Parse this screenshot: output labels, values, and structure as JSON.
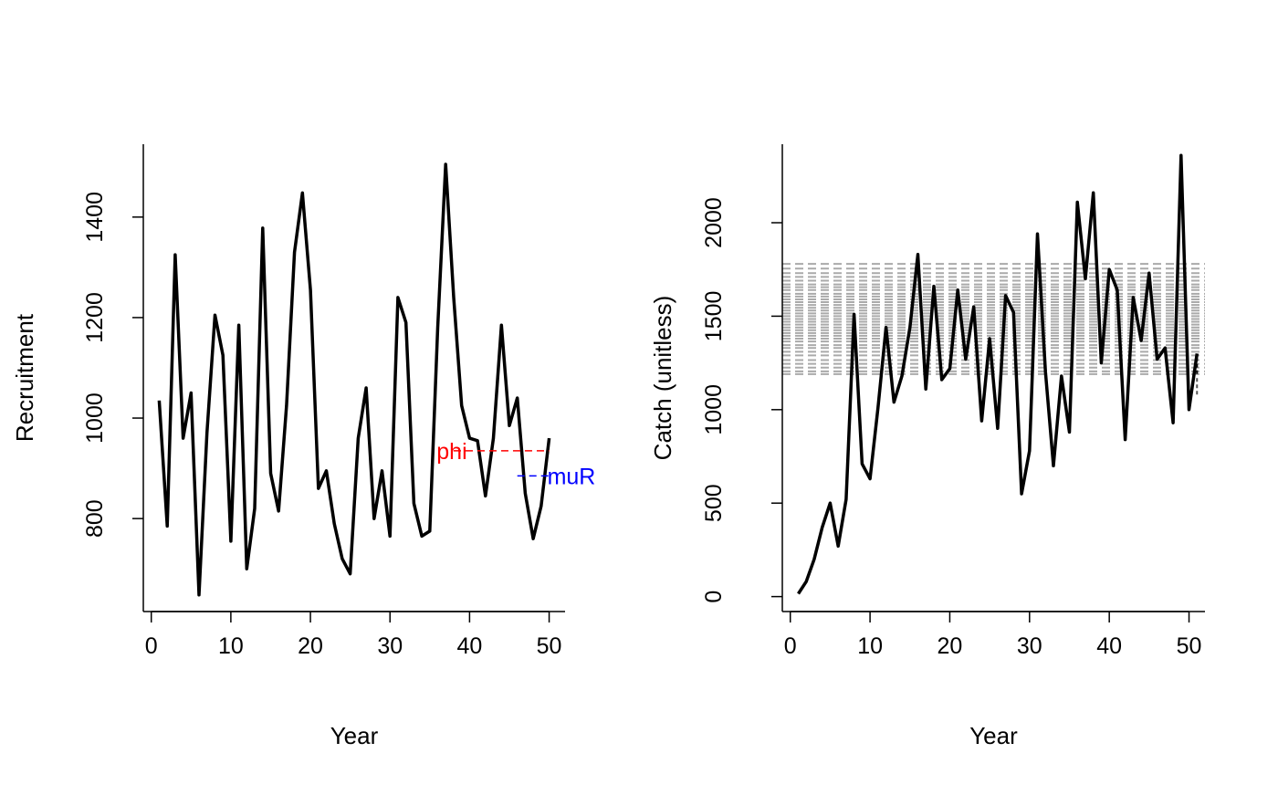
{
  "chart_data": [
    {
      "type": "line",
      "xlabel": "Year",
      "ylabel": "Recruitment",
      "xlim": [
        -1,
        52
      ],
      "ylim": [
        615,
        1545
      ],
      "xticks": [
        0,
        10,
        20,
        30,
        40,
        50
      ],
      "yticks": [
        800,
        1000,
        1200,
        1400
      ],
      "series": [
        {
          "name": "Recruitment",
          "color": "#000000",
          "x": [
            1,
            2,
            3,
            4,
            5,
            6,
            7,
            8,
            9,
            10,
            11,
            12,
            13,
            14,
            15,
            16,
            17,
            18,
            19,
            20,
            21,
            22,
            23,
            24,
            25,
            26,
            27,
            28,
            29,
            30,
            31,
            32,
            33,
            34,
            35,
            36,
            37,
            38,
            39,
            40,
            41,
            42,
            43,
            44,
            45,
            46,
            47,
            48,
            49,
            50
          ],
          "values": [
            1035,
            785,
            1325,
            960,
            1050,
            648,
            970,
            1205,
            1125,
            755,
            1185,
            700,
            820,
            1378,
            890,
            815,
            1025,
            1330,
            1448,
            1255,
            860,
            895,
            790,
            720,
            690,
            960,
            1060,
            800,
            895,
            765,
            1240,
            1190,
            830,
            765,
            775,
            1180,
            1505,
            1240,
            1025,
            960,
            955,
            845,
            960,
            1185,
            985,
            1040,
            850,
            760,
            825,
            960
          ]
        }
      ],
      "annotations": [
        {
          "label": "phi",
          "color": "#ff0000",
          "y": 935,
          "x_from": 38,
          "x_to": 50
        },
        {
          "label": "muR",
          "color": "#0000ff",
          "y": 885,
          "x_from": 46,
          "x_to": 50
        }
      ]
    },
    {
      "type": "line",
      "xlabel": "Year",
      "ylabel": "Catch (unitless)",
      "xlim": [
        -1,
        52
      ],
      "ylim": [
        -80,
        2420
      ],
      "xticks": [
        0,
        10,
        20,
        30,
        40,
        50
      ],
      "yticks": [
        0,
        500,
        1000,
        1500,
        2000
      ],
      "reference_lines": {
        "color": "#aaaaaa",
        "style": "dashed",
        "x_from": -1,
        "x_to": 52,
        "values": [
          1190,
          1205,
          1225,
          1245,
          1265,
          1290,
          1310,
          1330,
          1345,
          1365,
          1380,
          1395,
          1410,
          1425,
          1440,
          1455,
          1470,
          1485,
          1500,
          1515,
          1530,
          1545,
          1560,
          1575,
          1590,
          1605,
          1620,
          1640,
          1655,
          1670,
          1690,
          1710,
          1730,
          1755,
          1780
        ]
      },
      "series": [
        {
          "name": "Catch",
          "color": "#000000",
          "x": [
            1,
            2,
            3,
            4,
            5,
            6,
            7,
            8,
            9,
            10,
            11,
            12,
            13,
            14,
            15,
            16,
            17,
            18,
            19,
            20,
            21,
            22,
            23,
            24,
            25,
            26,
            27,
            28,
            29,
            30,
            31,
            32,
            33,
            34,
            35,
            36,
            37,
            38,
            39,
            40,
            41,
            42,
            43,
            44,
            45,
            46,
            47,
            48,
            49,
            50,
            51
          ],
          "values": [
            15,
            80,
            200,
            370,
            500,
            270,
            520,
            1510,
            710,
            630,
            1010,
            1440,
            1040,
            1180,
            1440,
            1830,
            1110,
            1660,
            1160,
            1220,
            1640,
            1270,
            1550,
            940,
            1380,
            900,
            1610,
            1520,
            550,
            780,
            1940,
            1200,
            700,
            1180,
            880,
            2110,
            1700,
            2160,
            1250,
            1750,
            1640,
            840,
            1600,
            1370,
            1730,
            1270,
            1330,
            930,
            2360,
            1000,
            1300
          ]
        }
      ],
      "end_markers": [
        {
          "x": 51,
          "y": 1230,
          "color": "#000000",
          "style": "dashed"
        },
        {
          "x": 51,
          "y": 1120,
          "color": "#555555",
          "style": "dashed"
        }
      ]
    }
  ]
}
